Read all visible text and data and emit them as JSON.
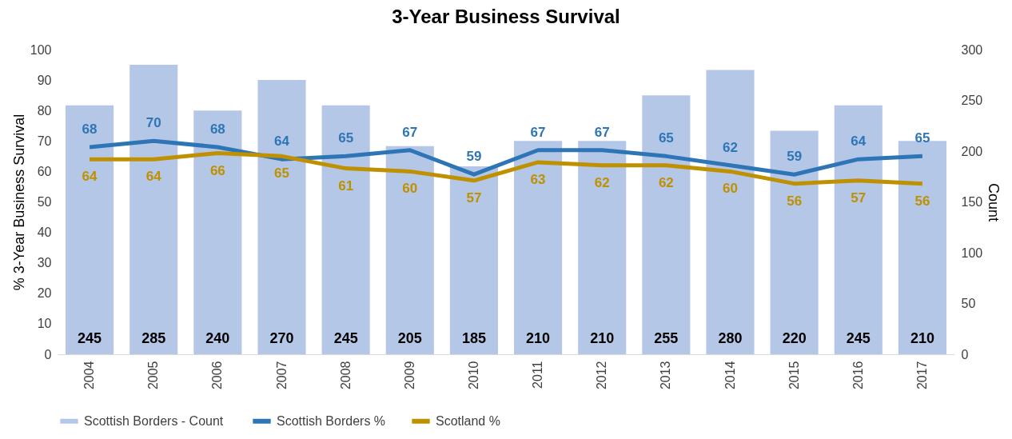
{
  "chart_data": {
    "type": "line",
    "title": "3-Year Business Survival",
    "ylabel": "% 3-Year Business Survival",
    "y2label": "Count",
    "categories": [
      "2004",
      "2005",
      "2006",
      "2007",
      "2008",
      "2009",
      "2010",
      "2011",
      "2012",
      "2013",
      "2014",
      "2015",
      "2016",
      "2017"
    ],
    "series": [
      {
        "name": "Scottish Borders  - Count",
        "type": "bar",
        "axis": "y2",
        "color": "#b4c7e7",
        "values": [
          245,
          285,
          240,
          270,
          245,
          205,
          185,
          210,
          210,
          255,
          280,
          220,
          245,
          210
        ]
      },
      {
        "name": "Scottish Borders %",
        "color": "#2e75b6",
        "values": [
          68,
          70,
          68,
          64,
          65,
          67,
          59,
          67,
          67,
          65,
          62,
          59,
          64,
          65
        ]
      },
      {
        "name": "Scotland %",
        "color": "#bf9000",
        "values": [
          64,
          64,
          66,
          65,
          61,
          60,
          57,
          63,
          62,
          62,
          60,
          56,
          57,
          56
        ]
      }
    ],
    "ylim": [
      0,
      100
    ],
    "yticks": [
      0,
      10,
      20,
      30,
      40,
      50,
      60,
      70,
      80,
      90,
      100
    ],
    "y2lim": [
      0,
      300
    ],
    "y2ticks": [
      0,
      50,
      100,
      150,
      200,
      250,
      300
    ],
    "data_labels": true,
    "legend": "bottom",
    "grid": false
  }
}
